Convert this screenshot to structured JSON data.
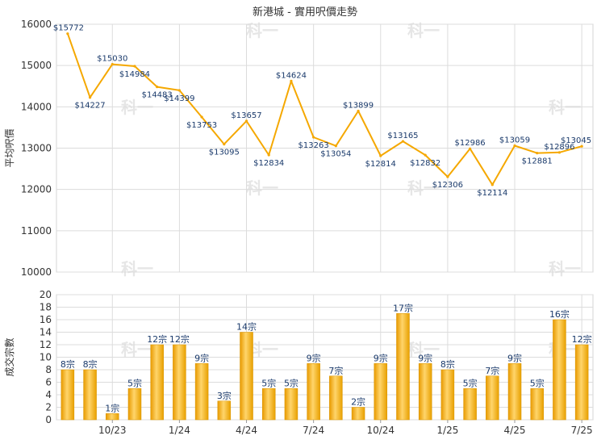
{
  "chart_data": [
    {
      "type": "line",
      "title": "新港城 - 實用呎價走勢",
      "ylabel": "平均呎價",
      "ylim": [
        10000,
        16000
      ],
      "yticks": [
        10000,
        11000,
        12000,
        13000,
        14000,
        15000,
        16000
      ],
      "grid": true,
      "color": "#f5a800",
      "values": [
        15772,
        14227,
        15030,
        14984,
        14483,
        14399,
        13753,
        13095,
        13657,
        12834,
        14624,
        13263,
        13054,
        13899,
        12814,
        13165,
        12832,
        12306,
        12986,
        12114,
        13059,
        12881,
        12896,
        13045
      ],
      "labels": [
        "$15772",
        "$14227",
        "$15030",
        "$14984",
        "$14483",
        "$14399",
        "$13753",
        "$13095",
        "$13657",
        "$12834",
        "$14624",
        "$13263",
        "$13054",
        "$13899",
        "$12814",
        "$13165",
        "$12832",
        "$12306",
        "$12986",
        "$12114",
        "$13059",
        "$12881",
        "$12896",
        "$13045"
      ]
    },
    {
      "type": "bar",
      "ylabel": "成交宗數",
      "ylim": [
        0,
        20
      ],
      "yticks": [
        0,
        2,
        4,
        6,
        8,
        10,
        12,
        14,
        16,
        18,
        20
      ],
      "grid": true,
      "color": "#f5b71d",
      "values": [
        8,
        8,
        1,
        5,
        12,
        12,
        9,
        3,
        14,
        5,
        5,
        9,
        7,
        2,
        9,
        17,
        9,
        8,
        5,
        7,
        9,
        5,
        16,
        12
      ],
      "labels": [
        "8宗",
        "8宗",
        "1宗",
        "5宗",
        "12宗",
        "12宗",
        "9宗",
        "3宗",
        "14宗",
        "5宗",
        "5宗",
        "9宗",
        "7宗",
        "2宗",
        "9宗",
        "17宗",
        "9宗",
        "8宗",
        "5宗",
        "7宗",
        "9宗",
        "5宗",
        "16宗",
        "12宗"
      ],
      "xtick_labels": [
        {
          "index": 2,
          "label": "10/23"
        },
        {
          "index": 5,
          "label": "1/24"
        },
        {
          "index": 8,
          "label": "4/24"
        },
        {
          "index": 11,
          "label": "7/24"
        },
        {
          "index": 14,
          "label": "10/24"
        },
        {
          "index": 17,
          "label": "1/25"
        },
        {
          "index": 20,
          "label": "4/25"
        },
        {
          "index": 23,
          "label": "7/25"
        }
      ]
    }
  ]
}
